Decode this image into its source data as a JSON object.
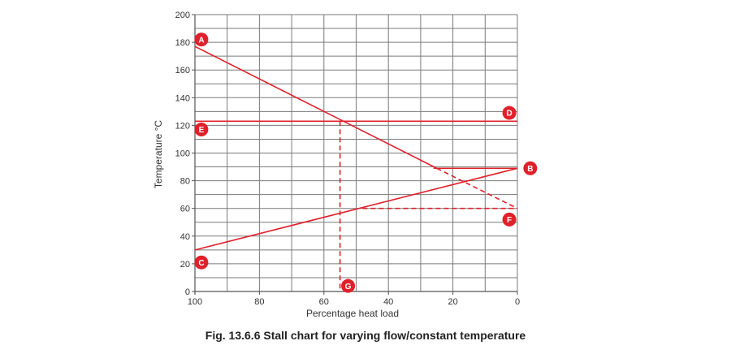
{
  "chart_data": {
    "type": "line",
    "xlabel": "Percentage heat load",
    "ylabel": "Temperature °C",
    "xlim": [
      100,
      0
    ],
    "ylim": [
      0,
      200
    ],
    "x_ticks": [
      100,
      80,
      60,
      40,
      20,
      0
    ],
    "y_ticks": [
      0,
      20,
      40,
      60,
      80,
      100,
      120,
      140,
      160,
      180,
      200
    ],
    "grid": true,
    "series": [
      {
        "points": [
          [
            100,
            177
          ],
          [
            25,
            89
          ]
        ],
        "style": "solid"
      },
      {
        "points": [
          [
            25,
            89
          ],
          [
            0,
            60
          ]
        ],
        "style": "dashed"
      },
      {
        "points": [
          [
            100,
            30
          ],
          [
            0,
            89
          ]
        ],
        "style": "solid"
      },
      {
        "points": [
          [
            100,
            123
          ],
          [
            0,
            123
          ]
        ],
        "style": "solid"
      },
      {
        "points": [
          [
            26,
            89
          ],
          [
            0,
            89
          ]
        ],
        "style": "solid"
      },
      {
        "points": [
          [
            55,
            123
          ],
          [
            55,
            0
          ]
        ],
        "style": "dashed"
      },
      {
        "points": [
          [
            48,
            60
          ],
          [
            0,
            60
          ]
        ],
        "style": "dashed"
      }
    ],
    "annotations": [
      {
        "label": "A",
        "x": 98,
        "y": 182
      },
      {
        "label": "B",
        "x": -4,
        "y": 89
      },
      {
        "label": "C",
        "x": 98,
        "y": 21
      },
      {
        "label": "D",
        "x": 2.5,
        "y": 129
      },
      {
        "label": "E",
        "x": 98,
        "y": 117
      },
      {
        "label": "F",
        "x": 2.5,
        "y": 52
      },
      {
        "label": "G",
        "x": 52.5,
        "y": 4
      }
    ],
    "caption": "Fig. 13.6.6 Stall chart for varying flow/constant temperature"
  },
  "colors": {
    "line": "#e0202a",
    "marker": "#e0202a",
    "grid": "#7a7a7a",
    "text": "#333333"
  }
}
